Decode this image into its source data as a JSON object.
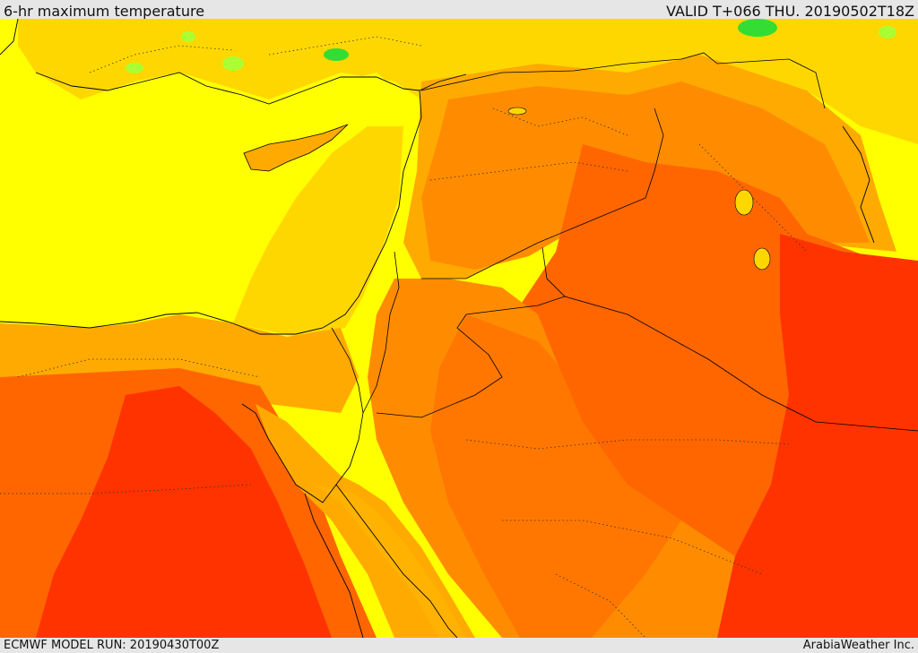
{
  "header": {
    "title": "6-hr maximum temperature",
    "valid": "VALID T+066 THU. 20190502T18Z"
  },
  "footer": {
    "model_run": "ECMWF MODEL RUN: 20190430T00Z",
    "credit": "ArabiaWeather Inc."
  },
  "palette": {
    "sea_yellow": "#ffff00",
    "warm_yellow": "#ffd700",
    "light_orange": "#ffaa00",
    "orange": "#ff8c00",
    "dark_orange": "#ff6600",
    "red_orange": "#ff3300",
    "green": "#aaff33",
    "dark_green": "#33dd33"
  }
}
